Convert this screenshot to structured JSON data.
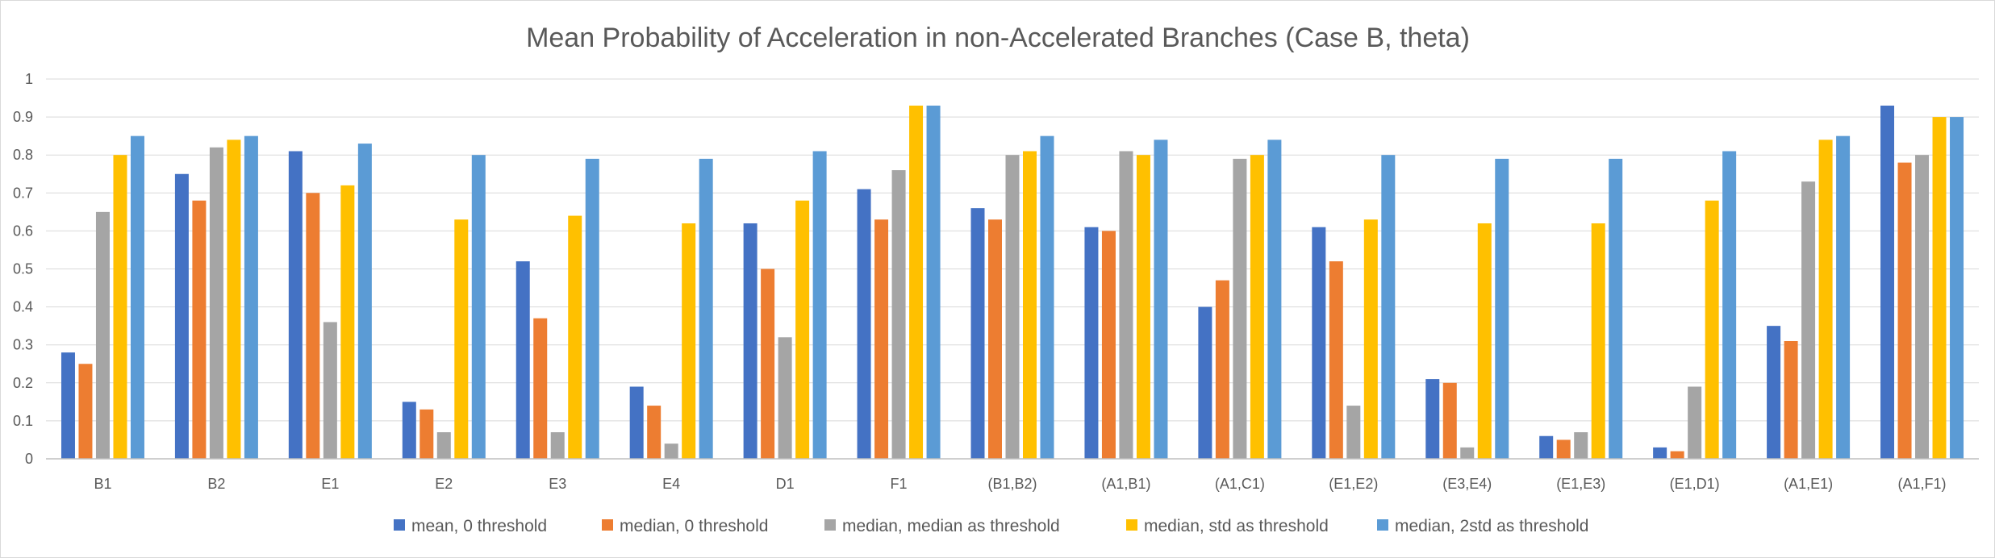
{
  "chart_data": {
    "type": "bar",
    "title": "Mean Probability of Acceleration in non-Accelerated Branches (Case B, theta)",
    "xlabel": "",
    "ylabel": "",
    "ylim": [
      0,
      1
    ],
    "yticks": [
      "0",
      "0.1",
      "0.2",
      "0.3",
      "0.4",
      "0.5",
      "0.6",
      "0.7",
      "0.8",
      "0.9",
      "1"
    ],
    "grid": true,
    "legend_position": "bottom",
    "categories": [
      "B1",
      "B2",
      "E1",
      "E2",
      "E3",
      "E4",
      "D1",
      "F1",
      "(B1,B2)",
      "(A1,B1)",
      "(A1,C1)",
      "(E1,E2)",
      "(E3,E4)",
      "(E1,E3)",
      "(E1,D1)",
      "(A1,E1)",
      "(A1,F1)"
    ],
    "series": [
      {
        "name": "mean, 0 threshold",
        "color": "#4472c4",
        "values": [
          0.28,
          0.75,
          0.81,
          0.15,
          0.52,
          0.19,
          0.62,
          0.71,
          0.66,
          0.61,
          0.4,
          0.61,
          0.21,
          0.06,
          0.03,
          0.35,
          0.93
        ]
      },
      {
        "name": "median, 0 threshold",
        "color": "#ed7d31",
        "values": [
          0.25,
          0.68,
          0.7,
          0.13,
          0.37,
          0.14,
          0.5,
          0.63,
          0.63,
          0.6,
          0.47,
          0.52,
          0.2,
          0.05,
          0.02,
          0.31,
          0.78
        ]
      },
      {
        "name": "median, median as threshold",
        "color": "#a5a5a5",
        "values": [
          0.65,
          0.82,
          0.36,
          0.07,
          0.07,
          0.04,
          0.32,
          0.76,
          0.8,
          0.81,
          0.79,
          0.14,
          0.03,
          0.07,
          0.19,
          0.73,
          0.8
        ]
      },
      {
        "name": "median, std as threshold",
        "color": "#ffc000",
        "values": [
          0.8,
          0.84,
          0.72,
          0.63,
          0.64,
          0.62,
          0.68,
          0.93,
          0.81,
          0.8,
          0.8,
          0.63,
          0.62,
          0.62,
          0.68,
          0.84,
          0.9
        ]
      },
      {
        "name": "median, 2std as threshold",
        "color": "#5b9bd5",
        "values": [
          0.85,
          0.85,
          0.83,
          0.8,
          0.79,
          0.79,
          0.81,
          0.93,
          0.85,
          0.84,
          0.84,
          0.8,
          0.79,
          0.79,
          0.81,
          0.85,
          0.9
        ]
      }
    ]
  }
}
